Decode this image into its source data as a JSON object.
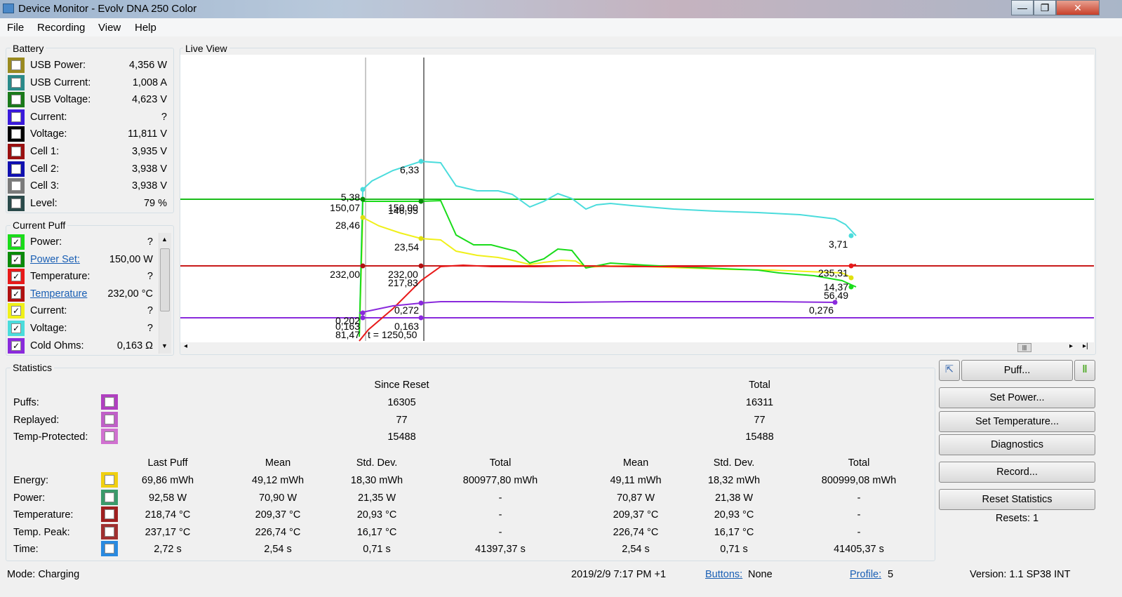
{
  "window": {
    "title": "Device Monitor - Evolv DNA 250 Color",
    "minimize_glyph": "—",
    "maximize_glyph": "❐",
    "close_glyph": "✕"
  },
  "menu": [
    "File",
    "Recording",
    "View",
    "Help"
  ],
  "battery": {
    "title": "Battery",
    "rows": [
      {
        "label": "USB Power:",
        "value": "4,356 W",
        "color": "#9a8a20"
      },
      {
        "label": "USB Current:",
        "value": "1,008 A",
        "color": "#2a8a8a"
      },
      {
        "label": "USB Voltage:",
        "value": "4,623 V",
        "color": "#1a7a1a"
      },
      {
        "label": "Current:",
        "value": "?",
        "color": "#3a1adc"
      },
      {
        "label": "Voltage:",
        "value": "11,811 V",
        "color": "#000000"
      },
      {
        "label": "Cell 1:",
        "value": "3,935 V",
        "color": "#9a1010"
      },
      {
        "label": "Cell 2:",
        "value": "3,938 V",
        "color": "#1010b0"
      },
      {
        "label": "Cell 3:",
        "value": "3,938 V",
        "color": "#7a7a7a"
      },
      {
        "label": "Level:",
        "value": "79 %",
        "color": "#2a4a4a"
      }
    ]
  },
  "current_puff": {
    "title": "Current Puff",
    "rows": [
      {
        "label": "Power:",
        "value": "?",
        "color": "#1adc1a",
        "checked": "✓"
      },
      {
        "label": "Power Set:",
        "value": "150,00 W",
        "color": "#0a8a0a",
        "checked": "✓"
      },
      {
        "label": "Temperature:",
        "value": "?",
        "color": "#e81a1a",
        "checked": "✓"
      },
      {
        "label": "Temperature",
        "value": "232,00 °C",
        "color": "#b01010",
        "checked": "✓"
      },
      {
        "label": "Current:",
        "value": "?",
        "color": "#f0f01a",
        "checked": "✓"
      },
      {
        "label": "Voltage:",
        "value": "?",
        "color": "#4adcdc",
        "checked": "✓"
      },
      {
        "label": "Cold Ohms:",
        "value": "0,163 Ω",
        "color": "#8a2adc",
        "checked": "✓"
      }
    ]
  },
  "live_view": {
    "title": "Live View",
    "labels": {
      "v1": "5,38",
      "v2": "6,33",
      "v3": "3,71",
      "p1": "150,07",
      "p2": "150,00",
      "p3": "146,95",
      "c1": "28,46",
      "c2": "23,54",
      "t1": "232,00",
      "t2": "232,00",
      "t3": "217,83",
      "t4": "235,31",
      "e1": "14,37",
      "e2": "56,49",
      "o1": "0,272",
      "o2": "0,276",
      "k1": "0,202",
      "k2": "0,163",
      "k3": "0,163",
      "q1": "81,47",
      "cursor": "t = 1250,50"
    }
  },
  "statistics": {
    "title": "Statistics",
    "since_reset": "Since Reset",
    "total": "Total",
    "counts": [
      {
        "label": "Puffs:",
        "since": "16305",
        "total": "16311",
        "color": "#b040c0"
      },
      {
        "label": "Replayed:",
        "since": "77",
        "total": "77",
        "color": "#c060c8"
      },
      {
        "label": "Temp-Protected:",
        "since": "15488",
        "total": "15488",
        "color": "#d070d0"
      }
    ],
    "headers": [
      "Last Puff",
      "Mean",
      "Std. Dev.",
      "Total",
      "Mean",
      "Std. Dev.",
      "Total"
    ],
    "rows": [
      {
        "label": "Energy:",
        "color": "#f0d010",
        "cells": [
          "69,86 mWh",
          "49,12 mWh",
          "18,30 mWh",
          "800977,80 mWh",
          "49,11 mWh",
          "18,32 mWh",
          "800999,08 mWh"
        ]
      },
      {
        "label": "Power:",
        "color": "#3a9a6a",
        "cells": [
          "92,58 W",
          "70,90 W",
          "21,35 W",
          "-",
          "70,87 W",
          "21,38 W",
          "-"
        ]
      },
      {
        "label": "Temperature:",
        "color": "#a02020",
        "cells": [
          "218,74 °C",
          "209,37 °C",
          "20,93 °C",
          "-",
          "209,37 °C",
          "20,93 °C",
          "-"
        ]
      },
      {
        "label": "Temp. Peak:",
        "color": "#a03030",
        "cells": [
          "237,17 °C",
          "226,74 °C",
          "16,17 °C",
          "-",
          "226,74 °C",
          "16,17 °C",
          "-"
        ]
      },
      {
        "label": "Time:",
        "color": "#2a8ae0",
        "cells": [
          "2,72 s",
          "2,54 s",
          "0,71 s",
          "41397,37 s",
          "2,54 s",
          "0,71 s",
          "41405,37 s"
        ]
      }
    ]
  },
  "buttons": {
    "puff": "Puff...",
    "set_power": "Set Power...",
    "set_temperature": "Set Temperature...",
    "diagnostics": "Diagnostics",
    "record": "Record...",
    "reset_statistics": "Reset Statistics",
    "resets": "Resets: 1"
  },
  "status": {
    "mode": "Mode: Charging",
    "datetime": "2019/2/9 7:17 PM +1",
    "buttons_label": "Buttons:",
    "buttons_value": "None",
    "profile_label": "Profile:",
    "profile_value": "5",
    "version": "Version: 1.1 SP38 INT"
  }
}
